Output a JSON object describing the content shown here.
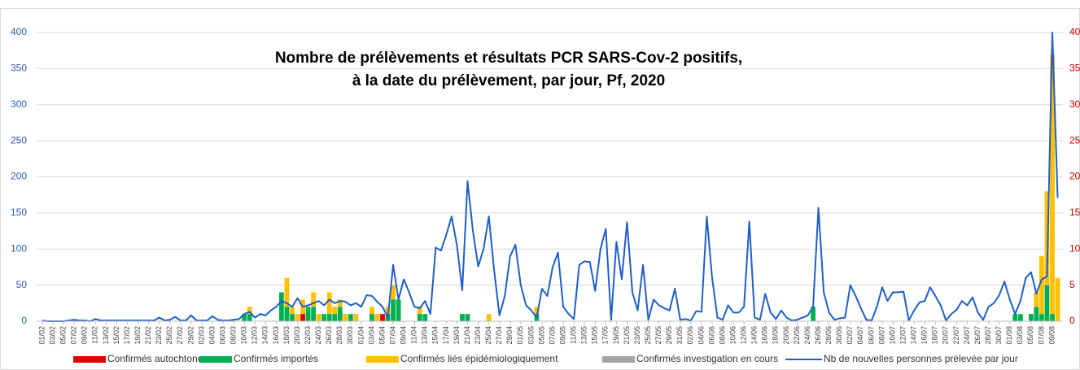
{
  "chart_data": {
    "type": "combo",
    "title": [
      "Nombre de prélèvements et résultats PCR SARS-Cov-2 positifs,",
      "à la date du prélèvement, par jour, Pf, 2020"
    ],
    "categories": [
      "01/02",
      null,
      "03/02",
      null,
      "05/02",
      null,
      "07/02",
      null,
      "09/02",
      null,
      "11/02",
      null,
      "13/02",
      null,
      "15/02",
      null,
      "17/02",
      null,
      "19/02",
      null,
      "21/02",
      null,
      "23/02",
      null,
      "25/02",
      null,
      "27/02",
      null,
      "29/02",
      null,
      "02/03",
      null,
      "04/03",
      null,
      "06/03",
      null,
      "08/03",
      null,
      "10/03",
      null,
      "12/03",
      null,
      "14/03",
      null,
      "16/03",
      null,
      "18/03",
      null,
      "20/03",
      null,
      "22/03",
      null,
      "24/03",
      null,
      "26/03",
      null,
      "28/03",
      null,
      "30/03",
      null,
      "01/04",
      null,
      "03/04",
      null,
      "05/04",
      null,
      "07/04",
      null,
      "09/04",
      null,
      "11/04",
      null,
      "13/04",
      null,
      "15/04",
      null,
      "17/04",
      null,
      "19/04",
      null,
      "21/04",
      null,
      "23/04",
      null,
      "25/04",
      null,
      "27/04",
      null,
      "29/04",
      null,
      "01/05",
      null,
      "03/05",
      null,
      "05/05",
      null,
      "07/05",
      null,
      "09/05",
      null,
      "11/05",
      null,
      "13/05",
      null,
      "15/05",
      null,
      "17/05",
      null,
      "19/05",
      null,
      "21/05",
      null,
      "23/05",
      null,
      "25/05",
      null,
      "27/05",
      null,
      "29/05",
      null,
      "31/05",
      null,
      "02/06",
      null,
      "04/06",
      null,
      "06/06",
      null,
      "08/06",
      null,
      "10/06",
      null,
      "12/06",
      null,
      "14/06",
      null,
      "16/06",
      null,
      "18/06",
      null,
      "20/06",
      null,
      "22/06",
      null,
      "24/06",
      null,
      "26/06",
      null,
      "28/06",
      null,
      "30/06",
      null,
      "02/07",
      null,
      "04/07",
      null,
      "06/07",
      null,
      "08/07",
      null,
      "10/07",
      null,
      "12/07",
      null,
      "14/07",
      null,
      "16/07",
      null,
      "18/07",
      null,
      "20/07",
      null,
      "22/07",
      null,
      "24/07",
      null,
      "26/07",
      null,
      "28/07",
      null,
      "30/07",
      null,
      "01/08",
      null,
      "03/08",
      null,
      "05/08",
      null,
      "07/08",
      null,
      "09/08",
      null
    ],
    "series": [
      {
        "name": "Confirmés autochtones",
        "type": "bar",
        "axis": "y2",
        "color": "#e00000",
        "values": [
          0,
          0,
          0,
          0,
          0,
          0,
          0,
          0,
          0,
          0,
          0,
          0,
          0,
          0,
          0,
          0,
          0,
          0,
          0,
          0,
          0,
          0,
          0,
          0,
          0,
          0,
          0,
          0,
          0,
          0,
          0,
          0,
          0,
          0,
          0,
          0,
          0,
          0,
          0,
          0,
          0,
          0,
          0,
          0,
          0,
          0,
          0,
          0,
          0,
          1,
          0,
          0,
          0,
          0,
          0,
          0,
          0,
          0,
          0,
          0,
          0,
          0,
          0,
          0,
          1,
          0,
          0,
          0,
          0,
          0,
          0,
          0,
          0,
          0,
          0,
          0,
          0,
          0,
          0,
          0,
          0,
          0,
          0,
          0,
          0,
          0,
          0,
          0,
          0,
          0,
          0,
          0,
          0,
          0,
          0,
          0,
          0,
          0,
          0,
          0,
          0,
          0,
          0,
          0,
          0,
          0,
          0,
          0,
          0,
          0,
          0,
          0,
          0,
          0,
          0,
          0,
          0,
          0,
          0,
          0,
          0,
          0,
          0,
          0,
          0,
          0,
          0,
          0,
          0,
          0,
          0,
          0,
          0,
          0,
          0,
          0,
          0,
          0,
          0,
          0,
          0,
          0,
          0,
          0,
          0,
          0,
          0,
          0,
          0,
          0,
          0,
          0,
          0,
          0,
          0,
          0,
          0,
          0,
          0,
          0,
          0,
          0,
          0,
          0,
          0,
          0,
          0,
          0,
          0,
          0,
          0,
          0,
          0,
          0,
          0,
          0,
          0,
          0,
          0,
          0,
          0,
          0,
          0,
          0,
          0,
          0,
          0,
          0,
          0,
          0,
          0,
          0
        ]
      },
      {
        "name": "Confirmés importés",
        "type": "bar",
        "axis": "y2",
        "color": "#00b050",
        "values": [
          0,
          0,
          0,
          0,
          0,
          0,
          0,
          0,
          0,
          0,
          0,
          0,
          0,
          0,
          0,
          0,
          0,
          0,
          0,
          0,
          0,
          0,
          0,
          0,
          0,
          0,
          0,
          0,
          0,
          0,
          0,
          0,
          0,
          0,
          0,
          0,
          0,
          0,
          1,
          1,
          0,
          0,
          0,
          0,
          0,
          4,
          2,
          1,
          0,
          0,
          2,
          2,
          0,
          1,
          1,
          1,
          2,
          0,
          1,
          0,
          0,
          0,
          1,
          0,
          0,
          1,
          3,
          3,
          0,
          0,
          0,
          1,
          1,
          0,
          0,
          0,
          0,
          0,
          0,
          1,
          1,
          0,
          0,
          0,
          0,
          0,
          0,
          0,
          0,
          0,
          0,
          0,
          0,
          1,
          0,
          0,
          0,
          0,
          0,
          0,
          0,
          0,
          0,
          0,
          0,
          0,
          0,
          0,
          0,
          0,
          0,
          0,
          0,
          0,
          0,
          0,
          0,
          0,
          0,
          0,
          0,
          0,
          0,
          0,
          0,
          0,
          0,
          0,
          0,
          0,
          0,
          0,
          0,
          0,
          0,
          0,
          0,
          0,
          0,
          0,
          0,
          0,
          0,
          0,
          0,
          2,
          0,
          0,
          0,
          0,
          0,
          0,
          0,
          0,
          0,
          0,
          0,
          0,
          0,
          0,
          0,
          0,
          0,
          0,
          0,
          0,
          0,
          0,
          0,
          0,
          0,
          0,
          0,
          0,
          0,
          0,
          0,
          0,
          0,
          0,
          0,
          0,
          0,
          1,
          1,
          0,
          1,
          2,
          1,
          5,
          1,
          0
        ]
      },
      {
        "name": "Confirmés liés épidémiologiquement",
        "type": "bar",
        "axis": "y2",
        "color": "#ffc000",
        "values": [
          0,
          0,
          0,
          0,
          0,
          0,
          0,
          0,
          0,
          0,
          0,
          0,
          0,
          0,
          0,
          0,
          0,
          0,
          0,
          0,
          0,
          0,
          0,
          0,
          0,
          0,
          0,
          0,
          0,
          0,
          0,
          0,
          0,
          0,
          0,
          0,
          0,
          0,
          0,
          1,
          0,
          0,
          0,
          0,
          0,
          0,
          4,
          1,
          1,
          2,
          0,
          2,
          1,
          0,
          3,
          1,
          1,
          1,
          0,
          1,
          0,
          0,
          1,
          1,
          0,
          1,
          2,
          0,
          0,
          0,
          0,
          1,
          0,
          0,
          0,
          0,
          0,
          0,
          0,
          0,
          0,
          0,
          0,
          0,
          1,
          0,
          0,
          0,
          0,
          0,
          0,
          0,
          0,
          1,
          0,
          0,
          0,
          0,
          0,
          0,
          0,
          0,
          0,
          0,
          0,
          0,
          0,
          0,
          0,
          0,
          0,
          0,
          0,
          0,
          0,
          0,
          0,
          0,
          0,
          0,
          0,
          0,
          0,
          0,
          0,
          0,
          0,
          0,
          0,
          0,
          0,
          0,
          0,
          0,
          0,
          0,
          0,
          0,
          0,
          0,
          0,
          0,
          0,
          0,
          0,
          0,
          0,
          0,
          0,
          0,
          0,
          0,
          0,
          0,
          0,
          0,
          0,
          0,
          0,
          0,
          0,
          0,
          0,
          0,
          0,
          0,
          0,
          0,
          0,
          0,
          0,
          0,
          0,
          0,
          0,
          0,
          0,
          0,
          0,
          0,
          0,
          0,
          0,
          0,
          0,
          0,
          0,
          2,
          8,
          13,
          36,
          6
        ]
      },
      {
        "name": "Confirmés investigation en cours",
        "type": "bar",
        "axis": "y2",
        "color": "#a5a5a5",
        "values": [
          0,
          0,
          0,
          0,
          0,
          0,
          0,
          0,
          0,
          0,
          0,
          0,
          0,
          0,
          0,
          0,
          0,
          0,
          0,
          0,
          0,
          0,
          0,
          0,
          0,
          0,
          0,
          0,
          0,
          0,
          0,
          0,
          0,
          0,
          0,
          0,
          0,
          0,
          0,
          0,
          0,
          0,
          0,
          0,
          0,
          0,
          0,
          0,
          0,
          0,
          0,
          0,
          0,
          0,
          0,
          0,
          0,
          0,
          0,
          0,
          0,
          0,
          0,
          0,
          0,
          0,
          0,
          0,
          0,
          0,
          0,
          0,
          0,
          0,
          0,
          0,
          0,
          0,
          0,
          0,
          0,
          0,
          0,
          0,
          0,
          0,
          0,
          0,
          0,
          0,
          0,
          0,
          0,
          0,
          0,
          0,
          0,
          0,
          0,
          0,
          0,
          0,
          0,
          0,
          0,
          0,
          0,
          0,
          0,
          0,
          0,
          0,
          0,
          0,
          0,
          0,
          0,
          0,
          0,
          0,
          0,
          0,
          0,
          0,
          0,
          0,
          0,
          0,
          0,
          0,
          0,
          0,
          0,
          0,
          0,
          0,
          0,
          0,
          0,
          0,
          0,
          0,
          0,
          0,
          0,
          0,
          0,
          0,
          0,
          0,
          0,
          0,
          0,
          0,
          0,
          0,
          0,
          0,
          0,
          0,
          0,
          0,
          0,
          0,
          0,
          0,
          0,
          0,
          0,
          0,
          0,
          0,
          0,
          0,
          0,
          0,
          0,
          0,
          0,
          0,
          0,
          0,
          0,
          0,
          0,
          0,
          0,
          0,
          0,
          0,
          0,
          0
        ]
      },
      {
        "name": "Nb de nouvelles personnes prélevée par jour",
        "type": "line",
        "color": "#1f5fc8",
        "values": [
          1,
          0,
          0,
          0,
          0,
          1,
          2,
          1,
          1,
          0,
          3,
          1,
          1,
          1,
          1,
          1,
          1,
          1,
          1,
          1,
          1,
          1,
          5,
          1,
          2,
          6,
          1,
          1,
          8,
          1,
          1,
          1,
          7,
          2,
          1,
          1,
          2,
          3,
          10,
          13,
          5,
          10,
          8,
          15,
          20,
          28,
          25,
          20,
          32,
          20,
          22,
          25,
          28,
          22,
          30,
          25,
          28,
          27,
          22,
          25,
          20,
          36,
          35,
          27,
          20,
          5,
          78,
          30,
          58,
          40,
          20,
          18,
          28,
          10,
          102,
          98,
          120,
          145,
          105,
          43,
          194,
          125,
          76,
          100,
          145,
          70,
          8,
          35,
          90,
          106,
          50,
          22,
          15,
          5,
          45,
          35,
          75,
          95,
          20,
          10,
          3,
          78,
          83,
          82,
          42,
          100,
          128,
          2,
          110,
          58,
          137,
          40,
          15,
          78,
          2,
          30,
          22,
          18,
          15,
          45,
          2,
          3,
          1,
          14,
          13,
          145,
          60,
          5,
          2,
          22,
          12,
          12,
          20,
          138,
          5,
          2,
          38,
          12,
          3,
          15,
          5,
          1,
          2,
          5,
          8,
          20,
          157,
          40,
          12,
          2,
          4,
          5,
          50,
          35,
          18,
          2,
          1,
          20,
          47,
          28,
          40,
          40,
          41,
          1,
          15,
          26,
          28,
          47,
          35,
          22,
          1,
          10,
          16,
          28,
          22,
          33,
          12,
          2,
          20,
          25,
          36,
          55,
          30,
          10,
          28,
          60,
          68,
          38,
          58,
          62,
          400,
          171
        ]
      }
    ],
    "ylim": [
      0,
      400
    ],
    "yticks": [
      0,
      50,
      100,
      150,
      200,
      250,
      300,
      350,
      400
    ],
    "y2lim": [
      0,
      40
    ],
    "y2ticks": [
      0,
      5,
      10,
      15,
      20,
      25,
      30,
      35,
      40
    ],
    "grid": true,
    "legend": "bottom"
  }
}
